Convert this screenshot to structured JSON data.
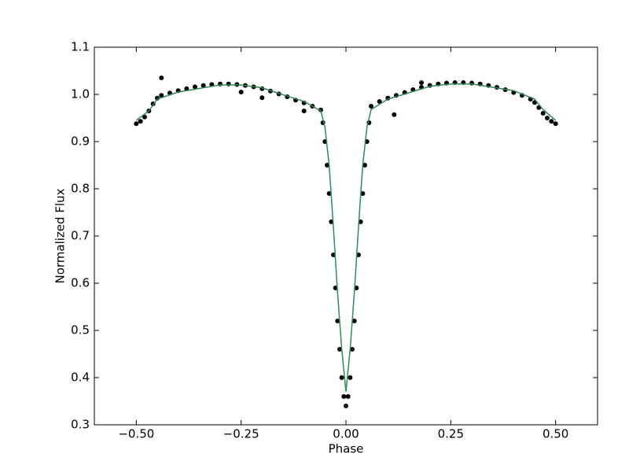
{
  "chart_data": {
    "type": "scatter",
    "xlabel": "Phase",
    "ylabel": "Normalized Flux",
    "xlim": [
      -0.6,
      0.6
    ],
    "ylim": [
      0.3,
      1.1
    ],
    "xticks": [
      {
        "value": -0.5,
        "label": "−0.50"
      },
      {
        "value": -0.25,
        "label": "−0.25"
      },
      {
        "value": 0,
        "label": "0.00"
      },
      {
        "value": 0.25,
        "label": "0.25"
      },
      {
        "value": 0.5,
        "label": "0.50"
      }
    ],
    "yticks": [
      0.3,
      0.4,
      0.5,
      0.6,
      0.7,
      0.8,
      0.9,
      {
        "value": 1,
        "label": "1.0"
      },
      1.1
    ],
    "grid": false,
    "series": [
      {
        "name": "data",
        "type": "scatter",
        "color": "#000000",
        "x": [
          -0.5,
          -0.49,
          -0.48,
          -0.47,
          -0.46,
          -0.45,
          -0.44,
          -0.42,
          -0.4,
          -0.38,
          -0.36,
          -0.34,
          -0.32,
          -0.3,
          -0.28,
          -0.26,
          -0.24,
          -0.22,
          -0.2,
          -0.18,
          -0.16,
          -0.14,
          -0.12,
          -0.1,
          -0.08,
          -0.06,
          -0.055,
          -0.05,
          -0.045,
          -0.04,
          -0.035,
          -0.03,
          -0.025,
          -0.02,
          -0.015,
          -0.01,
          -0.005,
          0,
          0.005,
          0.01,
          0.015,
          0.02,
          0.025,
          0.03,
          0.035,
          0.04,
          0.045,
          0.05,
          0.055,
          0.06,
          0.08,
          0.1,
          0.12,
          0.14,
          0.16,
          0.18,
          0.2,
          0.22,
          0.24,
          0.26,
          0.28,
          0.3,
          0.32,
          0.34,
          0.36,
          0.38,
          0.4,
          0.42,
          0.44,
          0.45,
          0.46,
          0.47,
          0.48,
          0.49,
          0.5,
          -0.44,
          -0.25,
          -0.2,
          -0.1,
          0.115,
          0.18
        ],
        "values": [
          0.938,
          0.943,
          0.952,
          0.965,
          0.98,
          0.992,
          0.998,
          1.003,
          1.008,
          1.012,
          1.016,
          1.019,
          1.021,
          1.022,
          1.022,
          1.021,
          1.019,
          1.016,
          1.012,
          1.007,
          1.001,
          0.995,
          0.988,
          0.982,
          0.975,
          0.967,
          0.94,
          0.9,
          0.85,
          0.79,
          0.73,
          0.66,
          0.59,
          0.52,
          0.46,
          0.4,
          0.36,
          0.34,
          0.36,
          0.4,
          0.46,
          0.52,
          0.59,
          0.66,
          0.73,
          0.79,
          0.85,
          0.9,
          0.94,
          0.975,
          0.985,
          0.992,
          0.998,
          1.004,
          1.01,
          1.015,
          1.019,
          1.022,
          1.024,
          1.025,
          1.025,
          1.024,
          1.022,
          1.019,
          1.015,
          1.01,
          1.004,
          0.998,
          0.99,
          0.983,
          0.972,
          0.96,
          0.95,
          0.943,
          0.938,
          1.035,
          1.005,
          0.993,
          0.965,
          0.957,
          1.025
        ]
      },
      {
        "name": "model",
        "type": "line",
        "color": "#2e8b57",
        "x": [
          -0.5,
          -0.47,
          -0.45,
          -0.4,
          -0.3,
          -0.25,
          -0.2,
          -0.1,
          -0.06,
          -0.05,
          -0.04,
          -0.03,
          -0.02,
          -0.01,
          0,
          0.01,
          0.02,
          0.03,
          0.04,
          0.05,
          0.06,
          0.1,
          0.2,
          0.25,
          0.3,
          0.4,
          0.45,
          0.47,
          0.5
        ],
        "values": [
          0.945,
          0.965,
          0.99,
          1.005,
          1.02,
          1.02,
          1.014,
          0.985,
          0.965,
          0.93,
          0.85,
          0.72,
          0.58,
          0.46,
          0.37,
          0.46,
          0.58,
          0.72,
          0.85,
          0.93,
          0.968,
          0.99,
          1.017,
          1.022,
          1.022,
          1.008,
          0.99,
          0.968,
          0.945
        ]
      }
    ]
  }
}
